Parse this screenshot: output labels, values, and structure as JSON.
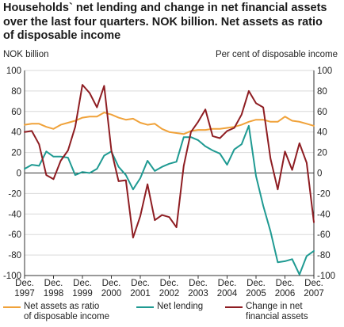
{
  "title_lines": [
    "Households` net lending and change in net financial assets",
    "over the last four quarters. NOK billion. Net assets as ratio",
    "of disposable income"
  ],
  "left_unit": "NOK billion",
  "right_unit": "Per cent of disposable income",
  "colors": {
    "net_assets": "#f0a23a",
    "net_lending": "#1f9a92",
    "change": "#8e1d22",
    "grid": "#d9d9d9",
    "axis": "#333333"
  },
  "chart_data": {
    "type": "line",
    "x_tick_labels": [
      [
        "Dec.",
        "1997"
      ],
      [
        "Dec.",
        "1998"
      ],
      [
        "Dec.",
        "1999"
      ],
      [
        "Dec.",
        "2000"
      ],
      [
        "Dec.",
        "2001"
      ],
      [
        "Dec.",
        "2002"
      ],
      [
        "Dec.",
        "2003"
      ],
      [
        "Dec.",
        "2004"
      ],
      [
        "Dec.",
        "2005"
      ],
      [
        "Dec.",
        "2006"
      ],
      [
        "Dec.",
        "2007"
      ]
    ],
    "x": [
      "1997Q4",
      "1998Q1",
      "1998Q2",
      "1998Q3",
      "1998Q4",
      "1999Q1",
      "1999Q2",
      "1999Q3",
      "1999Q4",
      "2000Q1",
      "2000Q2",
      "2000Q3",
      "2000Q4",
      "2001Q1",
      "2001Q2",
      "2001Q3",
      "2001Q4",
      "2002Q1",
      "2002Q2",
      "2002Q3",
      "2002Q4",
      "2003Q1",
      "2003Q2",
      "2003Q3",
      "2003Q4",
      "2004Q1",
      "2004Q2",
      "2004Q3",
      "2004Q4",
      "2005Q1",
      "2005Q2",
      "2005Q3",
      "2005Q4",
      "2006Q1",
      "2006Q2",
      "2006Q3",
      "2006Q4",
      "2007Q1",
      "2007Q2",
      "2007Q3",
      "2007Q4"
    ],
    "ylim_left": [
      -100,
      100
    ],
    "ylim_right": [
      -100,
      100
    ],
    "y_ticks": [
      100,
      80,
      60,
      40,
      20,
      0,
      -20,
      -40,
      -60,
      -80,
      -100
    ],
    "grid": true,
    "legend_position": "bottom",
    "series": [
      {
        "name": "Net assets as ratio of disposable income",
        "legend_lines": [
          "Net assets as ratio",
          "of disposable income"
        ],
        "axis": "right",
        "color_key": "net_assets",
        "values": [
          47,
          48,
          48,
          45,
          43,
          47,
          49,
          51,
          54,
          55,
          55,
          59,
          57,
          54,
          52,
          53,
          49,
          47,
          48,
          43,
          40,
          39,
          38,
          41,
          42,
          42,
          43,
          43,
          44,
          45,
          47,
          50,
          52,
          52,
          50,
          50,
          55,
          51,
          50,
          48,
          46
        ]
      },
      {
        "name": "Net lending",
        "legend_lines": [
          "Net lending"
        ],
        "axis": "left",
        "color_key": "net_lending",
        "values": [
          4,
          8,
          7,
          21,
          16,
          16,
          15,
          -2,
          1,
          0,
          4,
          17,
          21,
          6,
          -2,
          -16,
          -5,
          12,
          2,
          6,
          9,
          11,
          35,
          35,
          32,
          26,
          22,
          19,
          8,
          23,
          28,
          46,
          -3,
          -32,
          -57,
          -87,
          -86,
          -84,
          -99,
          -81,
          -76
        ]
      },
      {
        "name": "Change in net financial assets",
        "legend_lines": [
          "Change in net",
          "financial assets"
        ],
        "axis": "left",
        "color_key": "change",
        "values": [
          40,
          41,
          28,
          -2,
          -6,
          12,
          22,
          45,
          86,
          78,
          64,
          85,
          22,
          -8,
          -7,
          -63,
          -42,
          -11,
          -46,
          -41,
          -43,
          -53,
          7,
          40,
          50,
          62,
          36,
          34,
          41,
          44,
          57,
          80,
          68,
          64,
          14,
          -16,
          21,
          3,
          29,
          10,
          -48
        ]
      }
    ]
  }
}
